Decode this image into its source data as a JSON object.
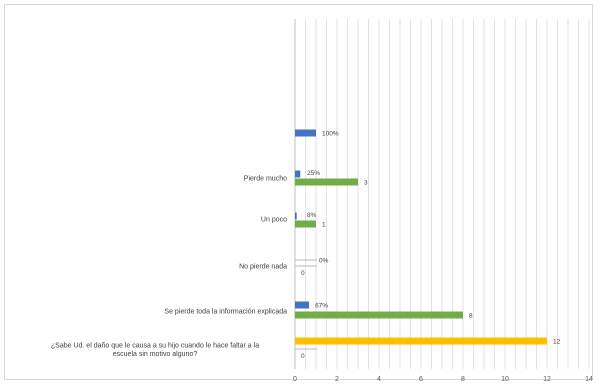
{
  "chart_data": {
    "type": "bar",
    "orientation": "horizontal",
    "xlim": [
      0,
      14
    ],
    "x_ticks": [
      "0",
      "2",
      "4",
      "6",
      "8",
      "10",
      "12",
      "14"
    ],
    "grid": true,
    "categories": [
      "",
      "",
      "Pierde mucho",
      "Un poco",
      "No pierde nada",
      "Se pierde toda la información explicada",
      "¿Sabe Ud. el daño que le causa a su hijo cuando le hace faltar a la escuela sin motivo alguno?"
    ],
    "series": [
      {
        "color": "#4472c4",
        "values": [
          null,
          1,
          0.25,
          0.08,
          0,
          0.67,
          null
        ],
        "labels": [
          "",
          "100%",
          "25%",
          "8%",
          "0%",
          "67%",
          ""
        ]
      },
      {
        "color": "#70ad47",
        "values": [
          null,
          null,
          3,
          1,
          0,
          8,
          null
        ],
        "labels": [
          "",
          "",
          "3",
          "1",
          "0",
          "8",
          ""
        ]
      },
      {
        "color": "#ffc000",
        "values": [
          null,
          null,
          null,
          null,
          null,
          null,
          12
        ],
        "labels": [
          "",
          "",
          "",
          "",
          "",
          "",
          "12"
        ]
      },
      {
        "color": "#a5a5a5",
        "values": [
          null,
          null,
          null,
          null,
          null,
          null,
          0
        ],
        "labels": [
          "",
          "",
          "",
          "",
          "",
          "",
          "0"
        ]
      }
    ]
  }
}
